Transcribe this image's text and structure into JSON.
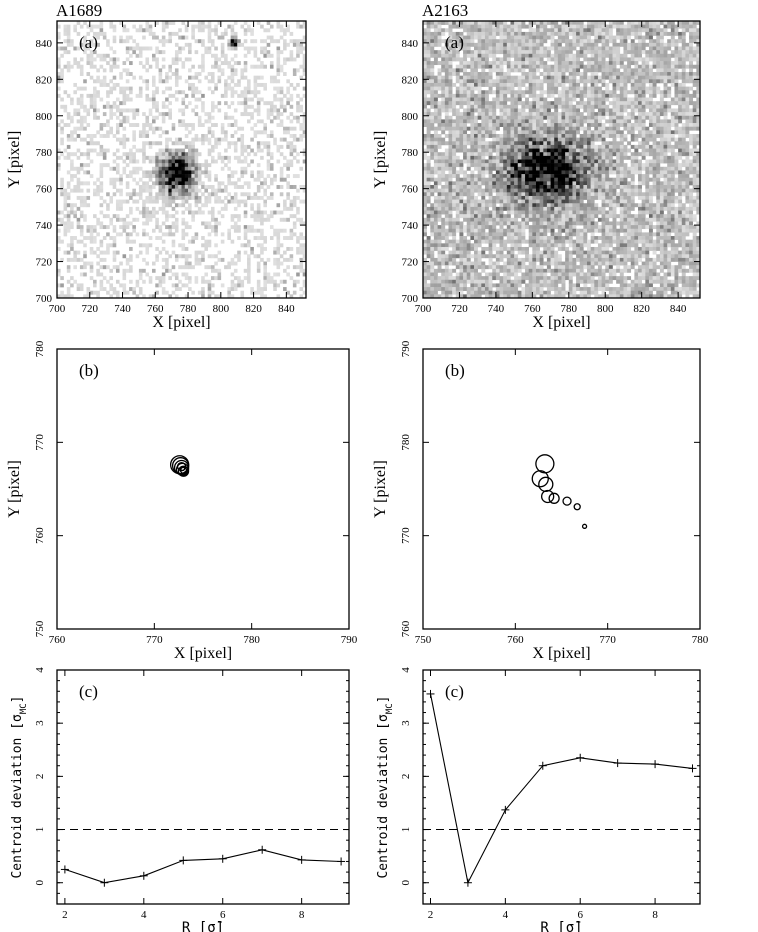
{
  "chart_data": [
    {
      "id": "a1689-a",
      "type": "heatmap",
      "title": "A1689",
      "panel_label": "(a)",
      "xlabel": "X [pixel]",
      "ylabel": "Y [pixel]",
      "xlim": [
        700,
        852
      ],
      "ylim": [
        700,
        852
      ],
      "xticks": [
        700,
        720,
        740,
        760,
        780,
        800,
        820,
        840
      ],
      "yticks": [
        700,
        720,
        740,
        760,
        780,
        800,
        820,
        840
      ],
      "peak": {
        "x": 773,
        "y": 768
      },
      "secondary_source": {
        "x": 808,
        "y": 840
      },
      "colormap": "grayscale"
    },
    {
      "id": "a2163-a",
      "type": "heatmap",
      "title": "A2163",
      "panel_label": "(a)",
      "xlabel": "X [pixel]",
      "ylabel": "Y [pixel]",
      "xlim": [
        700,
        852
      ],
      "ylim": [
        700,
        852
      ],
      "xticks": [
        700,
        720,
        740,
        760,
        780,
        800,
        820,
        840
      ],
      "yticks": [
        700,
        720,
        740,
        760,
        780,
        800,
        820,
        840
      ],
      "peak": {
        "x": 768,
        "y": 770
      },
      "colormap": "grayscale"
    },
    {
      "id": "a1689-b",
      "type": "scatter",
      "panel_label": "(b)",
      "xlabel": "X [pixel]",
      "ylabel": "Y [pixel]",
      "xlim": [
        760,
        790
      ],
      "ylim": [
        750,
        780
      ],
      "xticks": [
        760,
        770,
        780,
        790
      ],
      "yticks": [
        750,
        760,
        770,
        780
      ],
      "points": [
        {
          "x": 772.6,
          "y": 767.6,
          "r": 9
        },
        {
          "x": 772.7,
          "y": 767.5,
          "r": 8
        },
        {
          "x": 772.8,
          "y": 767.3,
          "r": 7
        },
        {
          "x": 772.9,
          "y": 767.1,
          "r": 6
        },
        {
          "x": 773.0,
          "y": 766.9,
          "r": 5
        },
        {
          "x": 772.8,
          "y": 767.4,
          "r": 4
        },
        {
          "x": 773.0,
          "y": 767.0,
          "r": 3
        },
        {
          "x": 772.9,
          "y": 767.2,
          "r": 2
        }
      ]
    },
    {
      "id": "a2163-b",
      "type": "scatter",
      "panel_label": "(b)",
      "xlabel": "X [pixel]",
      "ylabel": "Y [pixel]",
      "xlim": [
        750,
        780
      ],
      "ylim": [
        760,
        790
      ],
      "xticks": [
        750,
        760,
        770,
        780
      ],
      "yticks": [
        760,
        770,
        780,
        790
      ],
      "points": [
        {
          "x": 763.2,
          "y": 777.7,
          "r": 9
        },
        {
          "x": 762.7,
          "y": 776.1,
          "r": 8
        },
        {
          "x": 763.3,
          "y": 775.5,
          "r": 7
        },
        {
          "x": 763.5,
          "y": 774.2,
          "r": 6
        },
        {
          "x": 764.2,
          "y": 774.0,
          "r": 5
        },
        {
          "x": 765.6,
          "y": 773.7,
          "r": 4
        },
        {
          "x": 766.7,
          "y": 773.1,
          "r": 3
        },
        {
          "x": 767.5,
          "y": 771.0,
          "r": 2
        }
      ]
    },
    {
      "id": "a1689-c",
      "type": "line",
      "panel_label": "(c)",
      "xlabel": "R [σ̄]",
      "ylabel_main": "Centroid deviation [σ",
      "ylabel_sub": "MC",
      "ylabel_end": "]",
      "xlim": [
        1.8,
        9.2
      ],
      "ylim": [
        -0.4,
        4
      ],
      "xticks": [
        2,
        4,
        6,
        8
      ],
      "yticks": [
        0,
        1,
        2,
        3,
        4
      ],
      "reference_line": 1,
      "x": [
        2,
        3,
        4,
        5,
        6,
        7,
        8,
        9
      ],
      "values": [
        0.25,
        0.0,
        0.13,
        0.42,
        0.45,
        0.62,
        0.43,
        0.4
      ]
    },
    {
      "id": "a2163-c",
      "type": "line",
      "panel_label": "(c)",
      "xlabel": "R [σ̄]",
      "ylabel_main": "Centroid deviation [σ",
      "ylabel_sub": "MC",
      "ylabel_end": "]",
      "xlim": [
        1.8,
        9.2
      ],
      "ylim": [
        -0.4,
        4
      ],
      "xticks": [
        2,
        4,
        6,
        8
      ],
      "yticks": [
        0,
        1,
        2,
        3,
        4
      ],
      "reference_line": 1,
      "x": [
        2,
        3,
        4,
        5,
        6,
        7,
        8,
        9
      ],
      "values": [
        3.55,
        0.0,
        1.37,
        2.2,
        2.35,
        2.25,
        2.23,
        2.15
      ]
    }
  ]
}
